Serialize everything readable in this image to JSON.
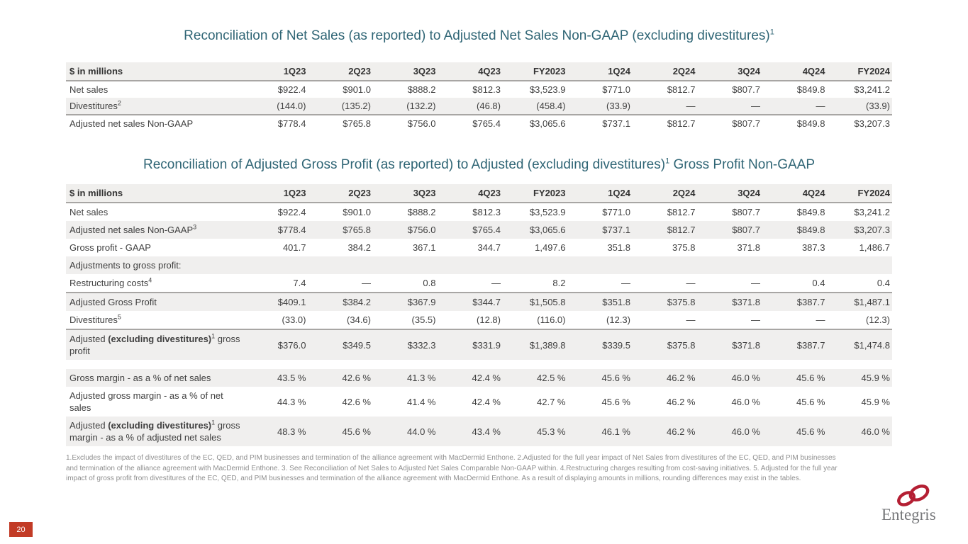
{
  "slide": {
    "page_number": "20",
    "logo": {
      "text": "Entegris",
      "ring_color": "#b41f33",
      "text_color": "#77787b"
    },
    "accents": {
      "title_color": "#2f6575",
      "page_tab_color": "#c23b26",
      "stripe_color": "#f0efee"
    },
    "corner_label": "$ in millions",
    "columns": [
      "1Q23",
      "2Q23",
      "3Q23",
      "4Q23",
      "FY2023",
      "1Q24",
      "2Q24",
      "3Q24",
      "4Q24",
      "FY2024"
    ],
    "table1": {
      "title_pre": "Reconciliation of Net Sales (as reported) to Adjusted Net Sales Non-GAAP (excluding divestitures)",
      "title_sup": "1",
      "rows": [
        {
          "label_pre": "Net sales",
          "values": [
            "$922.4",
            "$901.0",
            "$888.2",
            "$812.3",
            "$3,523.9",
            "$771.0",
            "$812.7",
            "$807.7",
            "$849.8",
            "$3,241.2"
          ],
          "shaded": false
        },
        {
          "label_pre": "Divestitures",
          "sup": "2",
          "values": [
            "(144.0)",
            "(135.2)",
            "(132.2)",
            "(46.8)",
            "(458.4)",
            "(33.9)",
            "—",
            "—",
            "—",
            "(33.9)"
          ],
          "shaded": true
        },
        {
          "label_pre": "Adjusted net sales Non-GAAP",
          "values": [
            "$778.4",
            "$765.8",
            "$756.0",
            "$765.4",
            "$3,065.6",
            "$737.1",
            "$812.7",
            "$807.7",
            "$849.8",
            "$3,207.3"
          ],
          "shaded": false,
          "top_border": true
        }
      ]
    },
    "table2": {
      "title_pre": "Reconciliation of Adjusted Gross Profit (as reported) to Adjusted (excluding divestitures)",
      "title_sup": "1",
      "title_post": " Gross Profit Non-GAAP",
      "rows": [
        {
          "label_pre": "Net sales",
          "values": [
            "$922.4",
            "$901.0",
            "$888.2",
            "$812.3",
            "$3,523.9",
            "$771.0",
            "$812.7",
            "$807.7",
            "$849.8",
            "$3,241.2"
          ],
          "shaded": false
        },
        {
          "label_pre": "Adjusted net sales Non-GAAP",
          "sup": "3",
          "values": [
            "$778.4",
            "$765.8",
            "$756.0",
            "$765.4",
            "$3,065.6",
            "$737.1",
            "$812.7",
            "$807.7",
            "$849.8",
            "$3,207.3"
          ],
          "shaded": true
        },
        {
          "label_pre": "Gross profit - GAAP",
          "values": [
            "401.7",
            "384.2",
            "367.1",
            "344.7",
            "1,497.6",
            "351.8",
            "375.8",
            "371.8",
            "387.3",
            "1,486.7"
          ],
          "shaded": false
        },
        {
          "label_pre": "Adjustments to gross profit:",
          "values": [],
          "shaded": true
        },
        {
          "label_pre": "Restructuring costs",
          "sup": "4",
          "values": [
            "7.4",
            "—",
            "0.8",
            "—",
            "8.2",
            "—",
            "—",
            "—",
            "0.4",
            "0.4"
          ],
          "shaded": false
        },
        {
          "label_pre": "Adjusted Gross Profit",
          "values": [
            "$409.1",
            "$384.2",
            "$367.9",
            "$344.7",
            "$1,505.8",
            "$351.8",
            "$375.8",
            "$371.8",
            "$387.7",
            "$1,487.1"
          ],
          "shaded": true,
          "top_border": true
        },
        {
          "label_pre": "Divestitures",
          "sup": "5",
          "values": [
            "(33.0)",
            "(34.6)",
            "(35.5)",
            "(12.8)",
            "(116.0)",
            "(12.3)",
            "—",
            "—",
            "—",
            "(12.3)"
          ],
          "shaded": false
        },
        {
          "label_pre": "Adjusted ",
          "label_bold": "(excluding divestitures)",
          "sup": "1",
          "label_post": " gross profit",
          "values": [
            "$376.0",
            "$349.5",
            "$332.3",
            "$331.9",
            "$1,389.8",
            "$339.5",
            "$375.8",
            "$371.8",
            "$387.7",
            "$1,474.8"
          ],
          "shaded": true,
          "top_border": true
        },
        {
          "label_pre": "Gross margin - as a % of net sales",
          "values": [
            "43.5 %",
            "42.6 %",
            "41.3 %",
            "42.4 %",
            "42.5 %",
            "45.6 %",
            "46.2 %",
            "46.0 %",
            "45.6 %",
            "45.9 %"
          ],
          "shaded": true,
          "gap_before": true
        },
        {
          "label_pre": "Adjusted gross margin - as a % of net sales",
          "values": [
            "44.3 %",
            "42.6 %",
            "41.4 %",
            "42.4 %",
            "42.7 %",
            "45.6 %",
            "46.2 %",
            "46.0 %",
            "45.6 %",
            "45.9 %"
          ],
          "shaded": false
        },
        {
          "label_pre": "Adjusted ",
          "label_bold": "(excluding divestitures)",
          "sup": "1",
          "label_post": " gross margin - as a % of adjusted net sales",
          "values": [
            "48.3 %",
            "45.6 %",
            "44.0 %",
            "43.4 %",
            "45.3 %",
            "46.1 %",
            "46.2 %",
            "46.0 %",
            "45.6 %",
            "46.0 %"
          ],
          "shaded": true
        }
      ]
    },
    "footnote": "1.Excludes the impact of divestitures of the EC, QED, and PIM businesses and termination of the alliance agreement with MacDermid Enthone. 2.Adjusted for the full year impact of Net Sales from divestitures of the EC, QED, and PIM businesses and termination of the alliance agreement with MacDermid Enthone. 3. See Reconciliation of Net Sales to Adjusted Net Sales Comparable Non-GAAP within. 4.Restructuring charges resulting from cost-saving initiatives. 5. Adjusted for the full year impact of gross profit from divestitures of the EC, QED, and PIM businesses and termination of the alliance agreement with MacDermid Enthone. As a result of displaying amounts in millions, rounding differences may exist in the tables."
  }
}
